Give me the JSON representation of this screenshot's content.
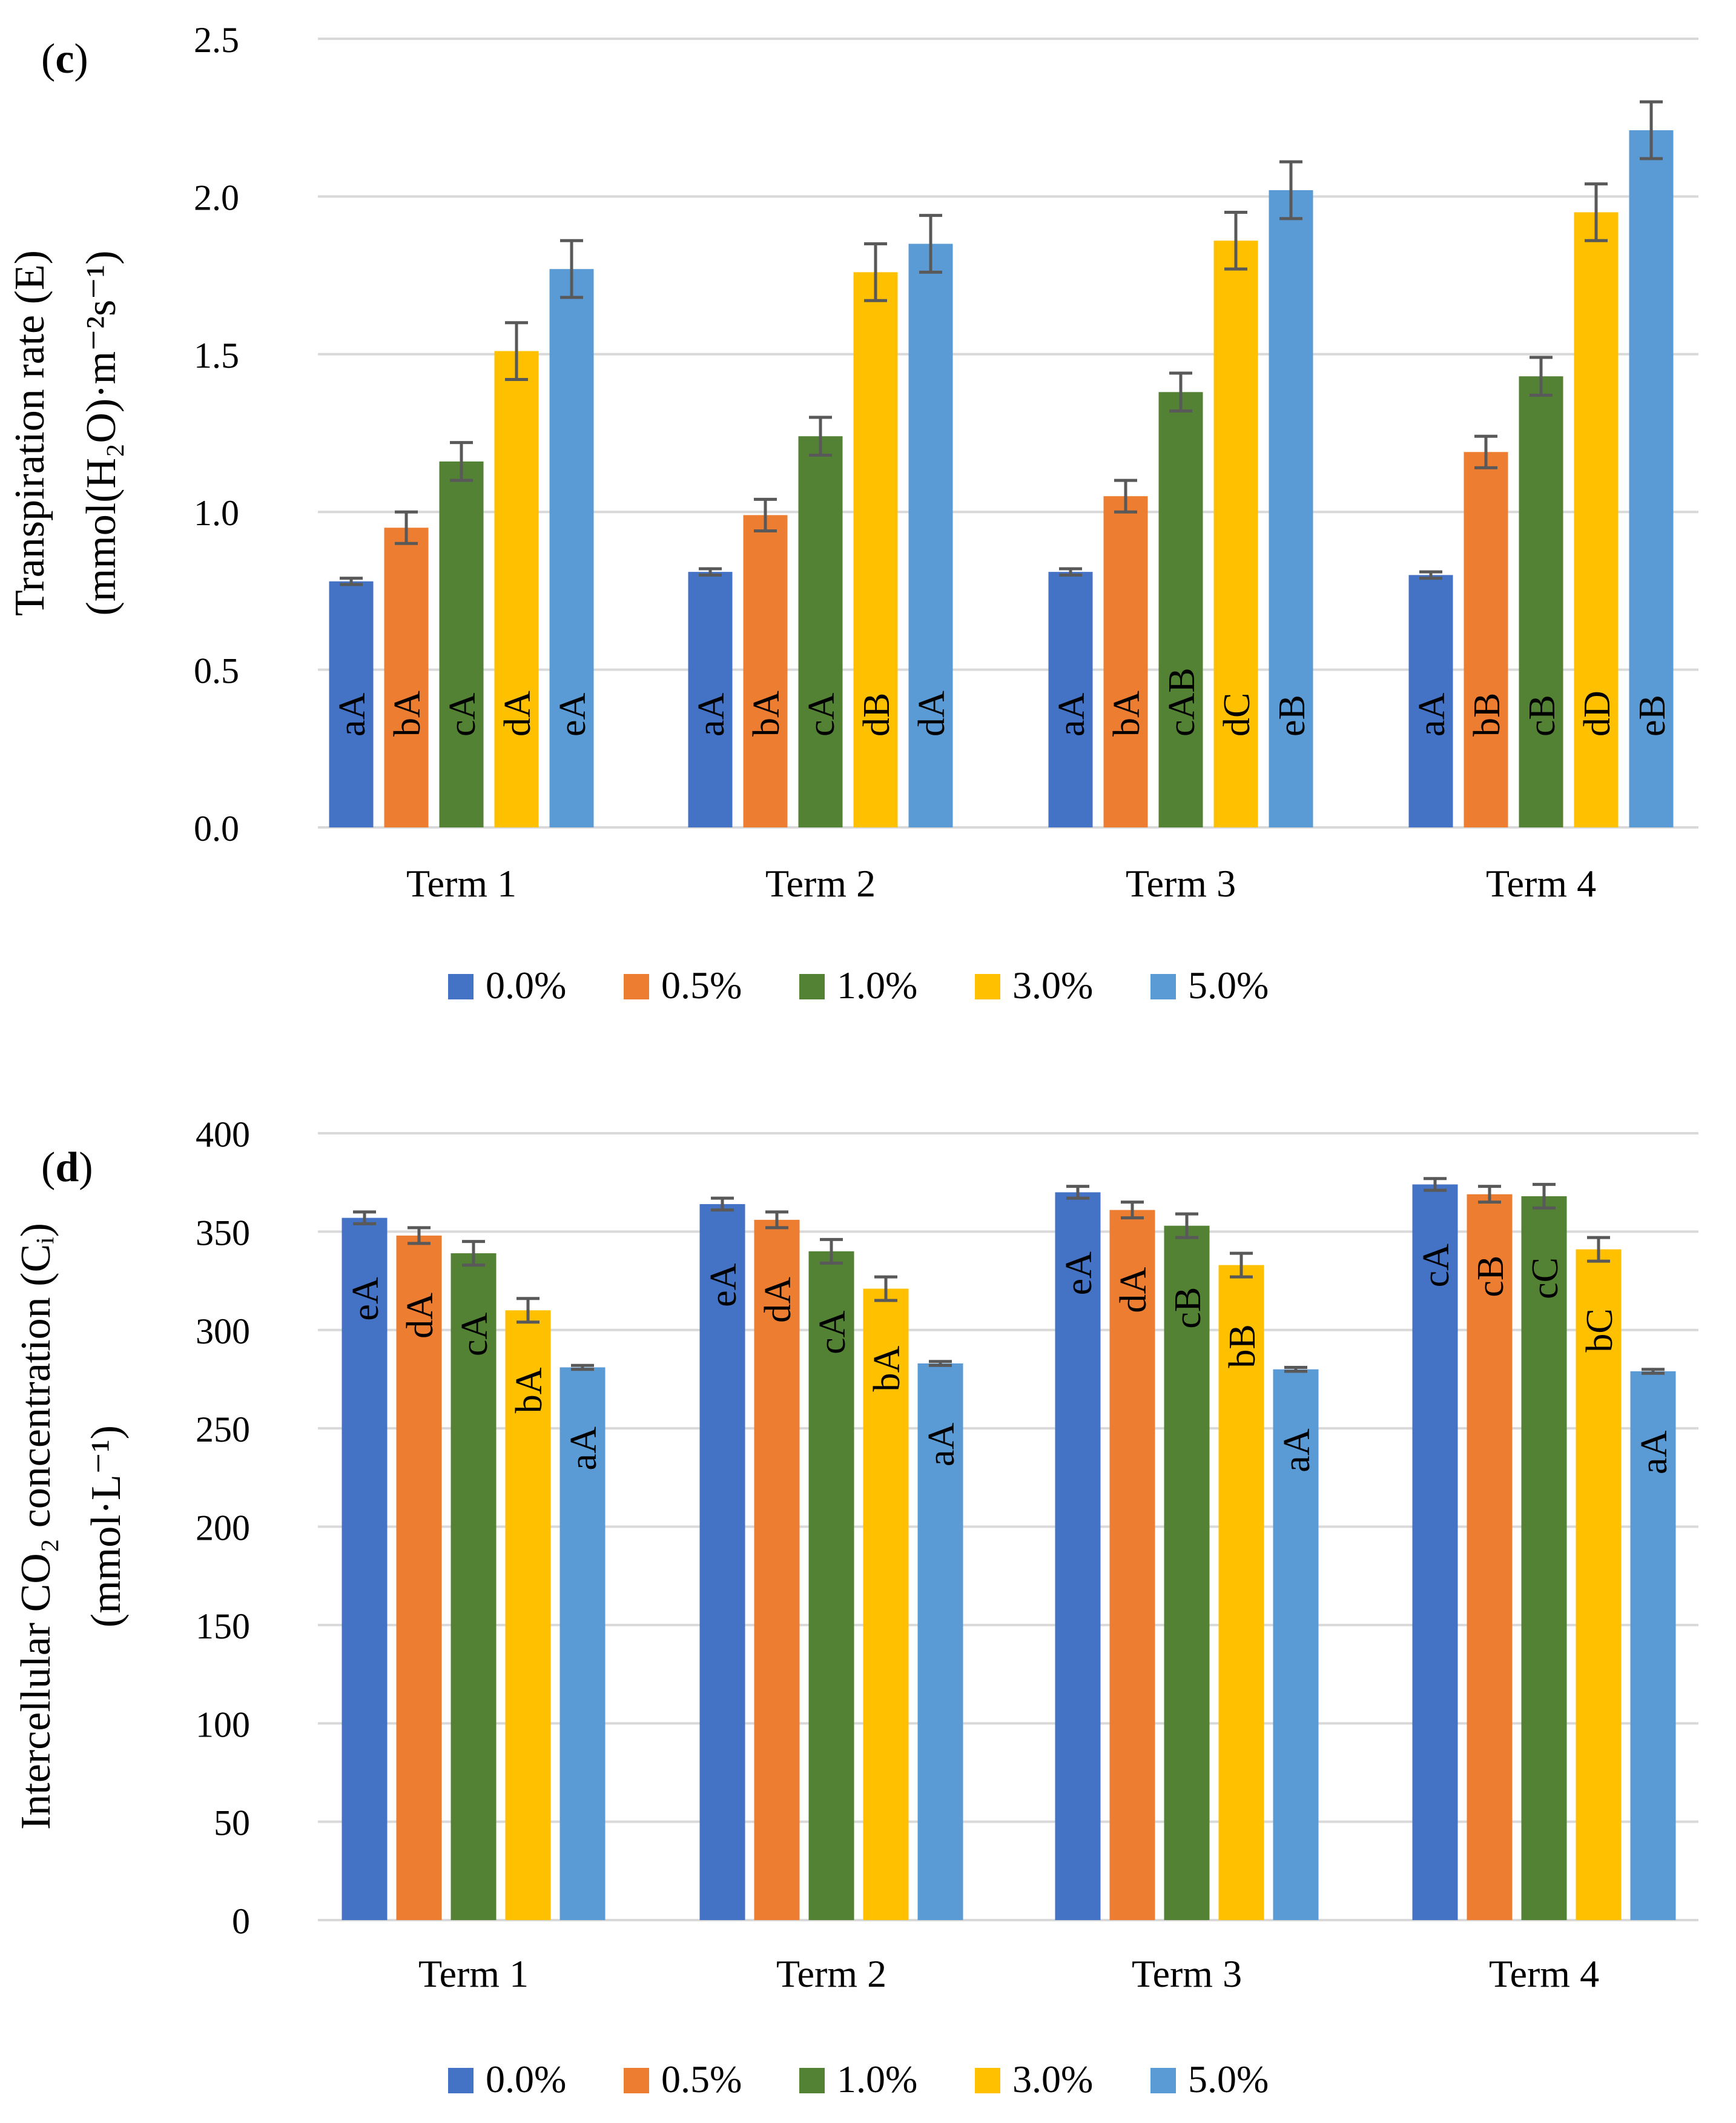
{
  "figure": {
    "categories": [
      "Term 1",
      "Term 2",
      "Term 3",
      "Term 4"
    ],
    "legend": [
      "0.0%",
      "0.5%",
      "1.0%",
      "3.0%",
      "5.0%"
    ],
    "colors": [
      "#4472C4",
      "#ED7D31",
      "#548235",
      "#FFC000",
      "#5B9BD5"
    ],
    "grid_color": "#D9D9D9",
    "error_bar_color": "#595959"
  },
  "chart_data": [
    {
      "type": "bar",
      "panel_label": "c",
      "ylabel_line1": "Transpiration rate (E)",
      "ylabel_line2": "(mmol(H₂O)·m⁻²s⁻¹)",
      "ylim": [
        0,
        2.5
      ],
      "y_ticks": [
        "0.0",
        "0.5",
        "1.0",
        "1.5",
        "2.0",
        "2.5"
      ],
      "categories": [
        "Term 1",
        "Term 2",
        "Term 3",
        "Term 4"
      ],
      "grid": true,
      "legend_position": "bottom",
      "series": [
        {
          "name": "0.0%",
          "values": [
            0.78,
            0.81,
            0.81,
            0.8
          ],
          "errors": [
            0.01,
            0.01,
            0.01,
            0.01
          ],
          "labels": [
            "aA",
            "aA",
            "aA",
            "aA"
          ]
        },
        {
          "name": "0.5%",
          "values": [
            0.95,
            0.99,
            1.05,
            1.19
          ],
          "errors": [
            0.05,
            0.05,
            0.05,
            0.05
          ],
          "labels": [
            "bA",
            "bA",
            "bA",
            "bB"
          ]
        },
        {
          "name": "1.0%",
          "values": [
            1.16,
            1.24,
            1.38,
            1.43
          ],
          "errors": [
            0.06,
            0.06,
            0.06,
            0.06
          ],
          "labels": [
            "cA",
            "cA",
            "cAB",
            "cB"
          ]
        },
        {
          "name": "3.0%",
          "values": [
            1.51,
            1.76,
            1.86,
            1.95
          ],
          "errors": [
            0.09,
            0.09,
            0.09,
            0.09
          ],
          "labels": [
            "dA",
            "dB",
            "dC",
            "dD"
          ]
        },
        {
          "name": "5.0%",
          "values": [
            1.77,
            1.85,
            2.02,
            2.21
          ],
          "errors": [
            0.09,
            0.09,
            0.09,
            0.09
          ],
          "labels": [
            "eA",
            "dA",
            "eB",
            "eB"
          ]
        }
      ]
    },
    {
      "type": "bar",
      "panel_label": "d",
      "ylabel_line1": "Intercellular CO₂ concentration (Cᵢ)",
      "ylabel_line2": "(mmol·L⁻¹)",
      "ylim": [
        0,
        400
      ],
      "y_ticks": [
        "0",
        "50",
        "100",
        "150",
        "200",
        "250",
        "300",
        "350",
        "400"
      ],
      "categories": [
        "Term 1",
        "Term 2",
        "Term 3",
        "Term 4"
      ],
      "grid": true,
      "legend_position": "bottom",
      "series": [
        {
          "name": "0.0%",
          "values": [
            357,
            364,
            370,
            374
          ],
          "errors": [
            3,
            3,
            3,
            3
          ],
          "labels": [
            "eA",
            "eA",
            "eA",
            "cA"
          ]
        },
        {
          "name": "0.5%",
          "values": [
            348,
            356,
            361,
            369
          ],
          "errors": [
            4,
            4,
            4,
            4
          ],
          "labels": [
            "dA",
            "dA",
            "dA",
            "cB"
          ]
        },
        {
          "name": "1.0%",
          "values": [
            339,
            340,
            353,
            368
          ],
          "errors": [
            6,
            6,
            6,
            6
          ],
          "labels": [
            "cA",
            "cA",
            "cB",
            "cC"
          ]
        },
        {
          "name": "3.0%",
          "values": [
            310,
            321,
            333,
            341
          ],
          "errors": [
            6,
            6,
            6,
            6
          ],
          "labels": [
            "bA",
            "bA",
            "bB",
            "bC"
          ]
        },
        {
          "name": "5.0%",
          "values": [
            281,
            283,
            280,
            279
          ],
          "errors": [
            1,
            1,
            1,
            1
          ],
          "labels": [
            "aA",
            "aA",
            "aA",
            "aA"
          ]
        }
      ]
    }
  ]
}
